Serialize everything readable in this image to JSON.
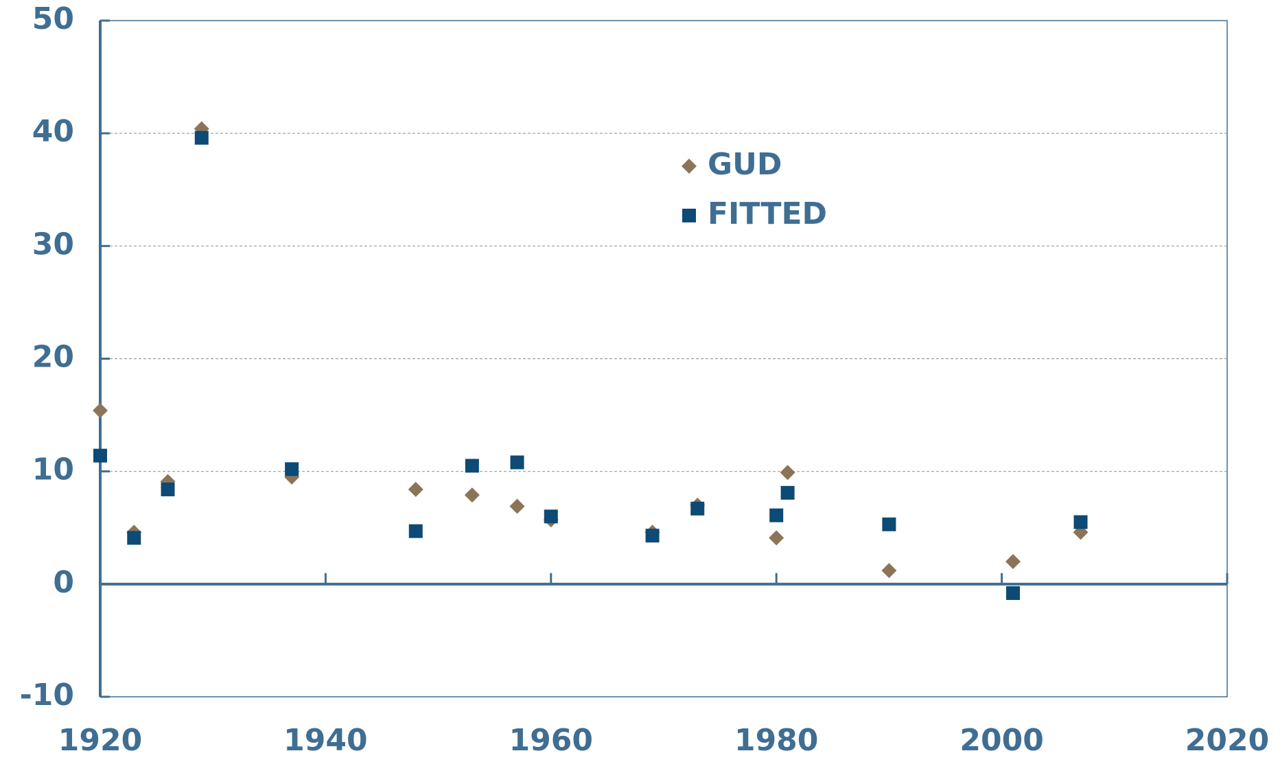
{
  "chart_data": {
    "type": "scatter",
    "series": [
      {
        "name": "GUD",
        "color": "#8c7458",
        "marker": "diamond",
        "x": [
          1920,
          1923,
          1926,
          1929,
          1937,
          1948,
          1953,
          1957,
          1960,
          1969,
          1973,
          1980,
          1981,
          1990,
          2001,
          2007
        ],
        "values": [
          15.4,
          4.6,
          9.1,
          40.4,
          9.5,
          8.4,
          7.9,
          6.9,
          5.7,
          4.6,
          7.0,
          4.1,
          9.9,
          1.2,
          2.0,
          4.6
        ]
      },
      {
        "name": "FITTED",
        "color": "#0d4a75",
        "marker": "square",
        "x": [
          1920,
          1923,
          1926,
          1929,
          1937,
          1948,
          1953,
          1957,
          1960,
          1969,
          1973,
          1980,
          1981,
          1990,
          2001,
          2007
        ],
        "values": [
          11.4,
          4.1,
          8.4,
          39.6,
          10.2,
          4.7,
          10.5,
          10.8,
          6.0,
          4.3,
          6.7,
          6.1,
          8.1,
          5.3,
          -0.8,
          5.5
        ]
      }
    ],
    "xlim": [
      1920,
      2020
    ],
    "xticks": [
      1920,
      1940,
      1960,
      1980,
      2000,
      2020
    ],
    "ylim": [
      -10,
      50
    ],
    "yticks": [
      -10,
      0,
      10,
      20,
      30,
      40,
      50
    ],
    "grid": true
  }
}
